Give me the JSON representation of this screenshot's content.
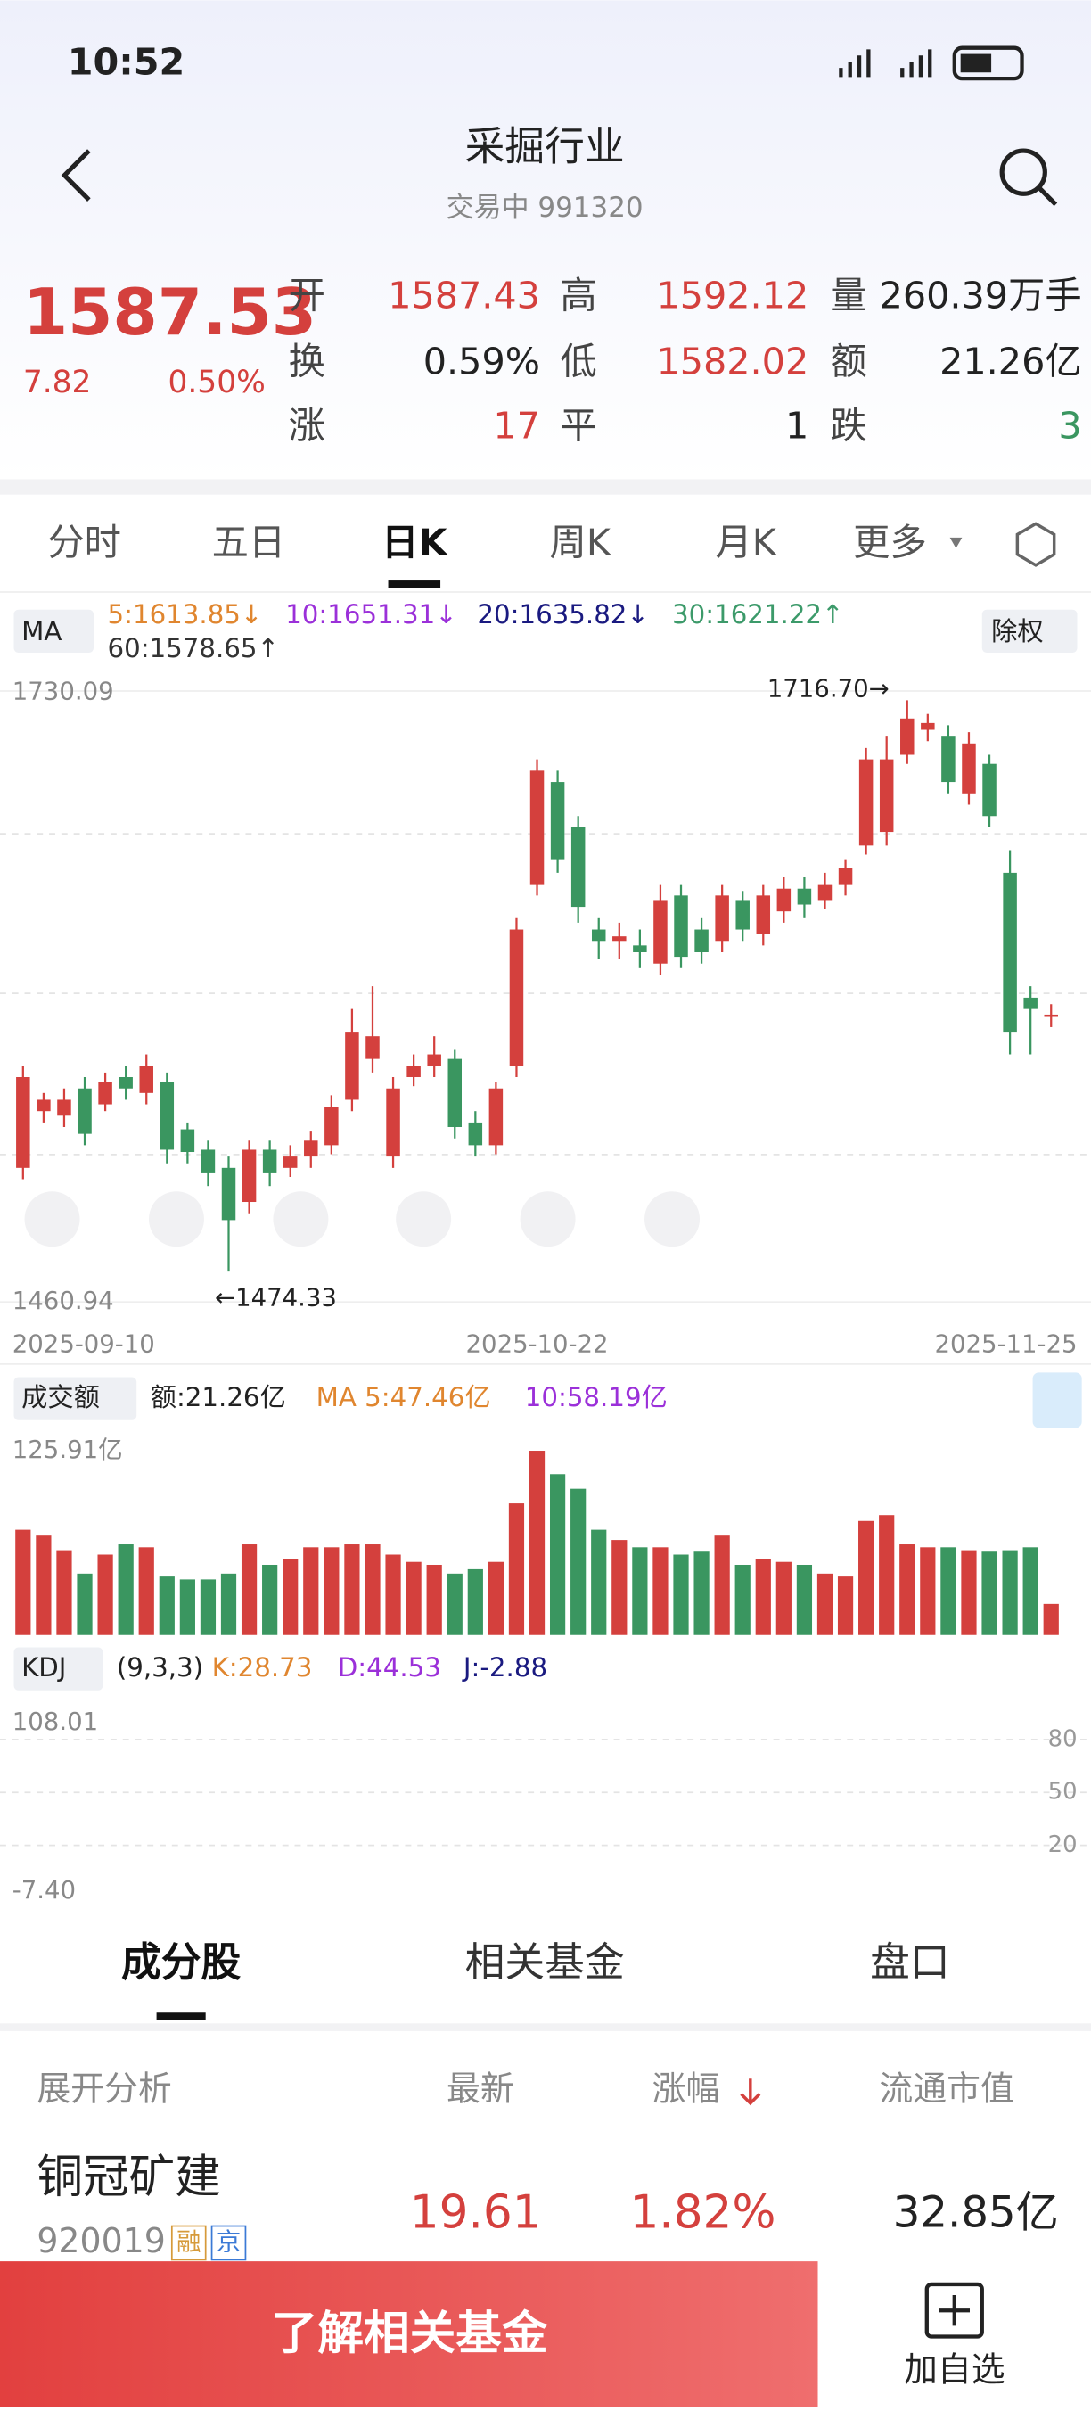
{
  "status": {
    "time": "10:52"
  },
  "header": {
    "title": "采掘行业",
    "subtitle": "交易中 991320"
  },
  "quote": {
    "price": "1587.53",
    "change": "7.82",
    "percent": "0.50%",
    "fields": [
      {
        "label": "开",
        "value": "1587.43"
      },
      {
        "label": "高",
        "value": "1592.12"
      },
      {
        "label": "量",
        "value": "260.39万手"
      },
      {
        "label": "换",
        "value": "0.59%"
      },
      {
        "label": "低",
        "value": "1582.02"
      },
      {
        "label": "额",
        "value": "21.26亿"
      },
      {
        "label": "涨",
        "value": "17"
      },
      {
        "label": "平",
        "value": "1"
      },
      {
        "label": "跌",
        "value": "3"
      }
    ]
  },
  "tabs": [
    "分时",
    "五日",
    "日K",
    "周K",
    "月K",
    "更多"
  ],
  "ma_legend": {
    "name": "MA",
    "items": [
      "5:1613.85↓",
      "10:1651.31↓",
      "20:1635.82↓",
      "30:1621.22↑",
      "60:1578.65↑"
    ],
    "adjust": "除权"
  },
  "kline": {
    "type": "candlestick",
    "ylim": [
      1460.94,
      1730.09
    ],
    "yticks": [
      1730.09,
      1460.94
    ],
    "dates": [
      "2025-09-10",
      "2025-10-22",
      "2025-11-25"
    ],
    "high_label": "1716.70→",
    "low_label": "←1474.33",
    "open": [
      1520,
      1545,
      1543,
      1555,
      1548,
      1560,
      1553,
      1558,
      1537,
      1528,
      1520,
      1505,
      1528,
      1520,
      1525,
      1530,
      1550,
      1568,
      1525,
      1560,
      1565,
      1568,
      1540,
      1530,
      1565,
      1645,
      1690,
      1670,
      1625,
      1620,
      1618,
      1610,
      1640,
      1625,
      1620,
      1638,
      1623,
      1633,
      1643,
      1638,
      1645,
      1662,
      1668,
      1702,
      1713,
      1710,
      1685,
      1698,
      1650,
      1595,
      1587.43
    ],
    "close": [
      1560,
      1550,
      1550,
      1535,
      1558,
      1555,
      1565,
      1528,
      1527,
      1518,
      1497,
      1528,
      1518,
      1525,
      1532,
      1547,
      1580,
      1578,
      1555,
      1565,
      1570,
      1538,
      1530,
      1555,
      1625,
      1695,
      1656,
      1635,
      1620,
      1622,
      1615,
      1638,
      1613,
      1615,
      1640,
      1625,
      1640,
      1643,
      1636,
      1645,
      1652,
      1700,
      1700,
      1718,
      1716,
      1690,
      1707,
      1675,
      1580,
      1590,
      1587.53
    ],
    "high": [
      1565,
      1553,
      1555,
      1560,
      1562,
      1565,
      1570,
      1562,
      1540,
      1532,
      1525,
      1532,
      1532,
      1530,
      1536,
      1552,
      1590,
      1600,
      1560,
      1570,
      1578,
      1572,
      1545,
      1558,
      1630,
      1700,
      1695,
      1675,
      1630,
      1628,
      1625,
      1645,
      1645,
      1630,
      1645,
      1642,
      1645,
      1648,
      1648,
      1650,
      1656,
      1705,
      1710,
      1726,
      1720,
      1715,
      1712,
      1702,
      1660,
      1600,
      1592.12
    ],
    "low": [
      1515,
      1540,
      1538,
      1530,
      1545,
      1550,
      1548,
      1522,
      1522,
      1512,
      1474.33,
      1500,
      1512,
      1516,
      1520,
      1526,
      1545,
      1562,
      1520,
      1556,
      1560,
      1533,
      1525,
      1526,
      1560,
      1640,
      1650,
      1628,
      1612,
      1612,
      1608,
      1605,
      1608,
      1610,
      1615,
      1620,
      1618,
      1628,
      1630,
      1634,
      1640,
      1658,
      1662,
      1698,
      1708,
      1685,
      1680,
      1670,
      1570,
      1570,
      1582.02
    ]
  },
  "volume": {
    "legend": [
      "成交额",
      "额:21.26亿",
      "MA 5:47.46亿",
      "10:58.19亿"
    ],
    "ylim": [
      0,
      125.91
    ],
    "yticks": [
      {
        "value": 125.91,
        "label": "125.91亿"
      }
    ],
    "values": [
      72,
      68,
      58,
      42,
      55,
      62,
      60,
      40,
      38,
      38,
      42,
      62,
      48,
      52,
      60,
      60,
      62,
      62,
      55,
      50,
      48,
      42,
      45,
      50,
      90,
      126,
      110,
      100,
      72,
      65,
      60,
      60,
      55,
      57,
      68,
      48,
      52,
      50,
      48,
      42,
      40,
      78,
      82,
      62,
      60,
      60,
      58,
      57,
      58,
      60,
      21.26
    ]
  },
  "kdj": {
    "legend": [
      "KDJ",
      "(9,3,3)",
      "K:28.73",
      "D:44.53",
      "J:-2.88"
    ],
    "yticks": [
      108.01,
      {
        "value": -7.4,
        "label": "-7.40"
      }
    ],
    "right_ticks": [
      80,
      50,
      20
    ]
  },
  "bottom_tabs": [
    "成分股",
    "相关基金",
    "盘口"
  ],
  "table": {
    "header": [
      "展开分析",
      "最新",
      "涨幅",
      "流通市值"
    ],
    "rows": [
      {
        "name": "铜冠矿建",
        "code": "920019",
        "badges": [
          "融",
          "京"
        ],
        "latest": "19.61",
        "change": "1.82%",
        "cap": "32.85亿"
      }
    ]
  },
  "footer": {
    "button": "了解相关基金",
    "watch": "加自选"
  }
}
